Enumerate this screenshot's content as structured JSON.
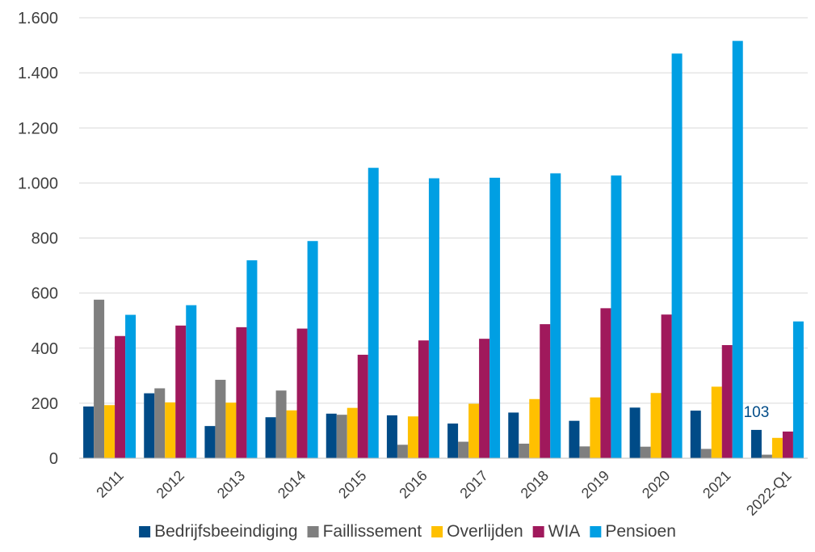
{
  "chart_data": {
    "type": "bar",
    "categories": [
      "2011",
      "2012",
      "2013",
      "2014",
      "2015",
      "2016",
      "2017",
      "2018",
      "2019",
      "2020",
      "2021",
      "2022-Q1"
    ],
    "ylim": [
      0,
      1600
    ],
    "yticks": [
      0,
      200,
      400,
      600,
      800,
      1000,
      1200,
      1400,
      1600
    ],
    "ytick_labels": [
      "0",
      "200",
      "400",
      "600",
      "800",
      "1.000",
      "1.200",
      "1.400",
      "1.600"
    ],
    "grid": true,
    "legend_position": "bottom",
    "series": [
      {
        "name": "Bedrijfsbeeindiging",
        "color": "#004b87",
        "values": [
          188,
          236,
          117,
          149,
          162,
          156,
          126,
          166,
          136,
          184,
          173,
          103
        ]
      },
      {
        "name": "Faillissement",
        "color": "#7f7f7f",
        "values": [
          576,
          254,
          285,
          246,
          158,
          49,
          60,
          53,
          43,
          42,
          34,
          13
        ]
      },
      {
        "name": "Overlijden",
        "color": "#ffc000",
        "values": [
          193,
          203,
          202,
          174,
          183,
          152,
          198,
          215,
          221,
          237,
          260,
          74
        ]
      },
      {
        "name": "WIA",
        "color": "#a0195c",
        "values": [
          444,
          482,
          476,
          471,
          376,
          428,
          434,
          487,
          545,
          522,
          411,
          97
        ]
      },
      {
        "name": "Pensioen",
        "color": "#009fe3",
        "values": [
          521,
          556,
          719,
          789,
          1055,
          1017,
          1019,
          1035,
          1027,
          1470,
          1516,
          497
        ]
      }
    ],
    "annotations": [
      {
        "text": "103",
        "category": "2022-Q1",
        "series": "Bedrijfsbeeindiging",
        "color": "#004b87"
      }
    ]
  }
}
